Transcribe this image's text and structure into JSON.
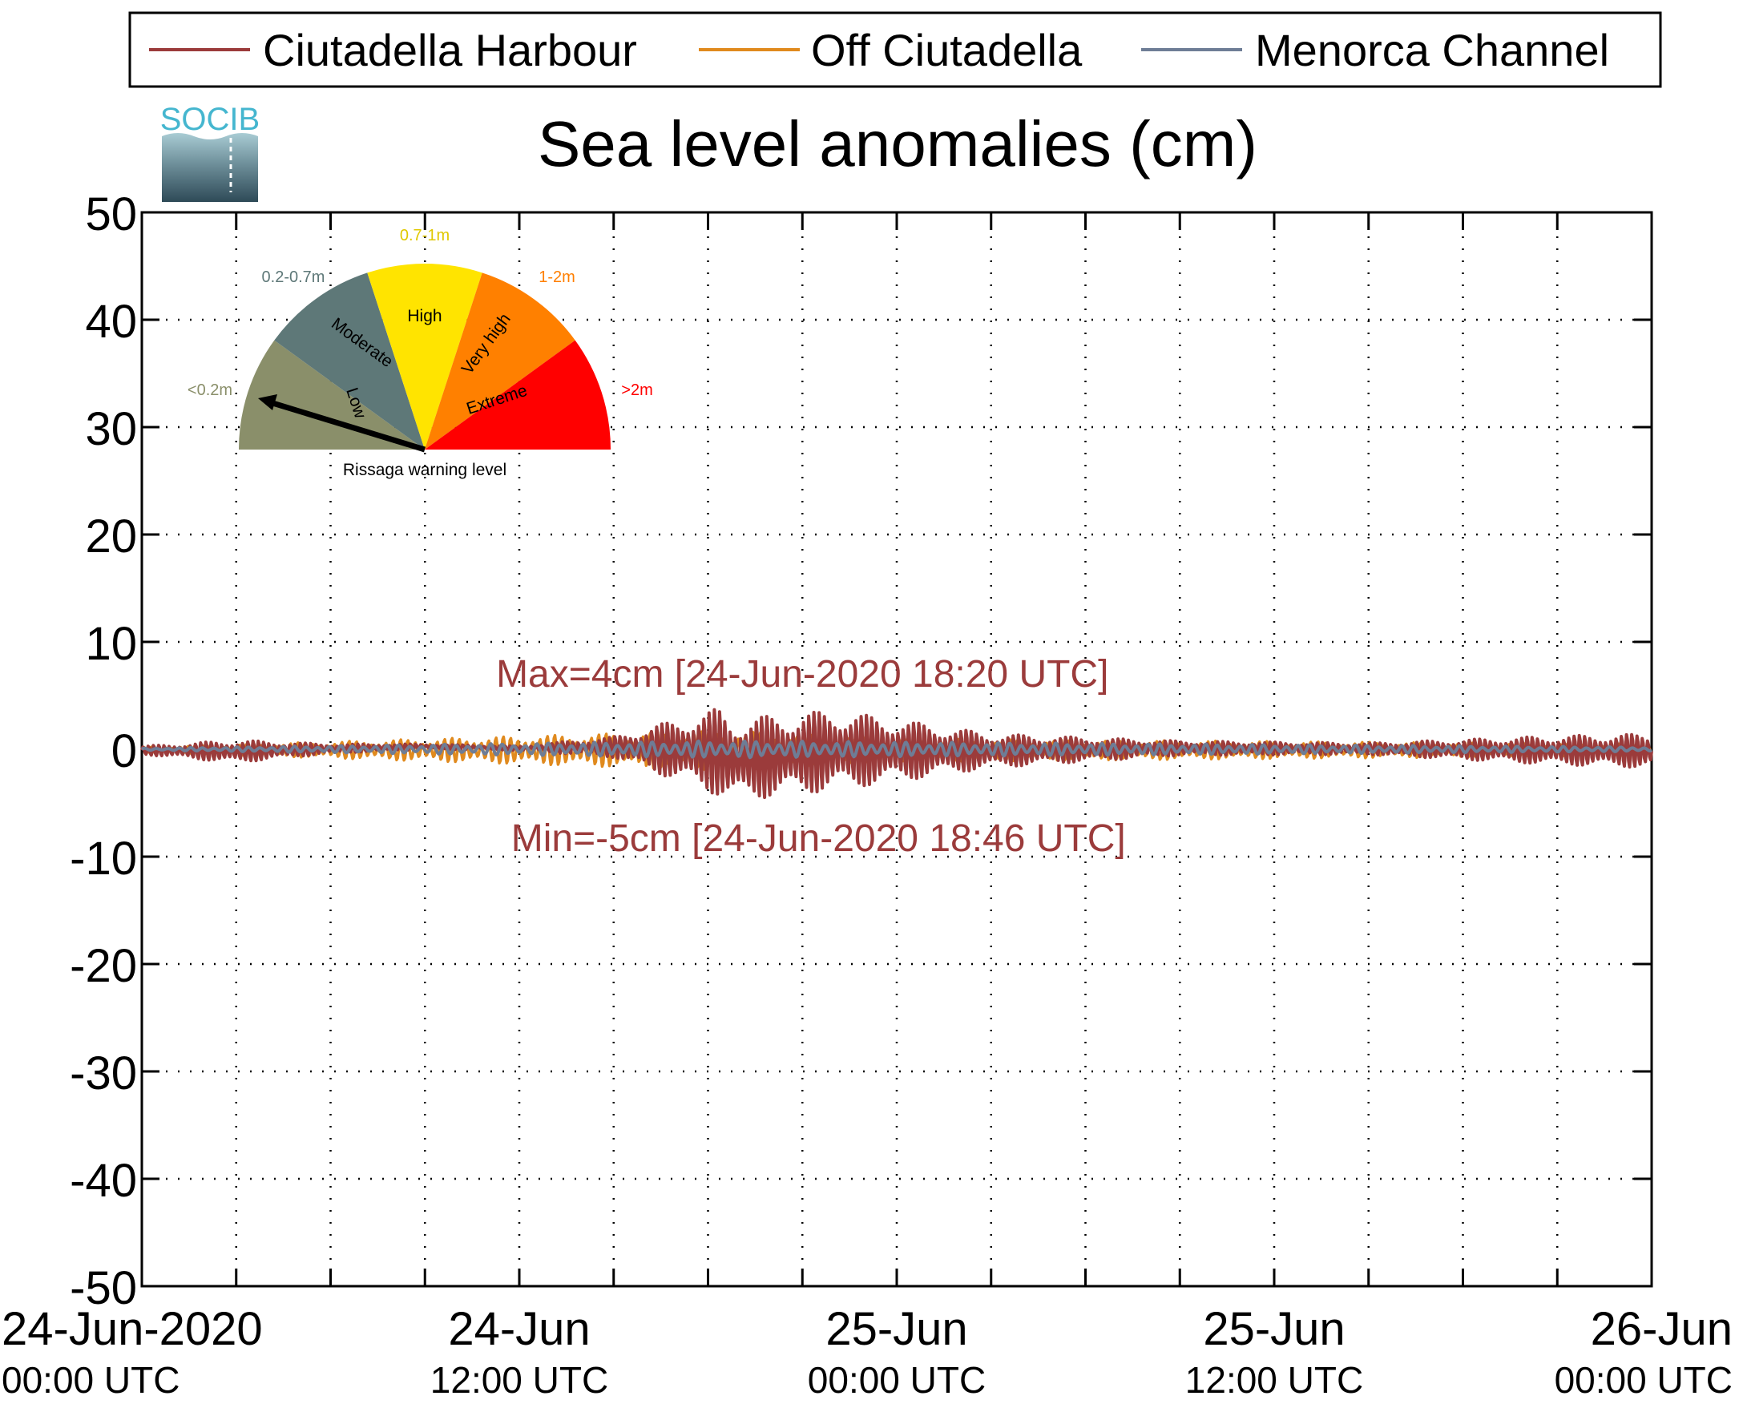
{
  "chart_data": {
    "type": "line",
    "title": "Sea level anomalies (cm)",
    "xlabel": "",
    "ylabel": "",
    "ylim": [
      -50,
      50
    ],
    "yticks": [
      50,
      40,
      30,
      20,
      10,
      0,
      -10,
      -20,
      -30,
      -40,
      -50
    ],
    "yticklabels": [
      "50",
      "40",
      "30",
      "20",
      "10",
      "0",
      "-10",
      "-20",
      "-30",
      "-40",
      "-50"
    ],
    "xlim": [
      "2020-06-24T00:00Z",
      "2020-06-26T00:00Z"
    ],
    "xtick_hours": [
      0,
      3,
      6,
      9,
      12,
      15,
      18,
      21,
      24,
      27,
      30,
      33,
      36,
      39,
      42,
      45,
      48
    ],
    "xticklabels": [
      {
        "line1": "24-Jun-2020",
        "line2": "00:00 UTC"
      },
      {
        "line1": "24-Jun",
        "line2": "12:00 UTC"
      },
      {
        "line1": "25-Jun",
        "line2": "00:00 UTC"
      },
      {
        "line1": "25-Jun",
        "line2": "12:00 UTC"
      },
      {
        "line1": "26-Jun",
        "line2": "00:00 UTC"
      }
    ],
    "grid": true,
    "legend_position": "top",
    "series": [
      {
        "name": "Ciutadella Harbour",
        "color": "#9b3b3b",
        "envelope": [
          {
            "x": "2020-06-24T00:00Z",
            "y_min": -0.5,
            "y_max": 0.3
          },
          {
            "x": "2020-06-24T03:00Z",
            "y_min": -1.3,
            "y_max": 0.9
          },
          {
            "x": "2020-06-24T06:00Z",
            "y_min": -0.4,
            "y_max": 0.5
          },
          {
            "x": "2020-06-24T09:00Z",
            "y_min": 0.0,
            "y_max": 0.5
          },
          {
            "x": "2020-06-24T12:00Z",
            "y_min": -0.1,
            "y_max": 0.3
          },
          {
            "x": "2020-06-24T15:00Z",
            "y_min": -0.8,
            "y_max": 1.2
          },
          {
            "x": "2020-06-24T18:20Z",
            "y_min": -4.5,
            "y_max": 4.0
          },
          {
            "x": "2020-06-24T18:46Z",
            "y_min": -5.0,
            "y_max": 3.0
          },
          {
            "x": "2020-06-24T22:00Z",
            "y_min": -4.0,
            "y_max": 3.8
          },
          {
            "x": "2020-06-25T03:00Z",
            "y_min": -1.8,
            "y_max": 1.5
          },
          {
            "x": "2020-06-25T09:00Z",
            "y_min": -0.6,
            "y_max": 0.8
          },
          {
            "x": "2020-06-25T15:00Z",
            "y_min": -0.5,
            "y_max": 0.6
          },
          {
            "x": "2020-06-25T21:00Z",
            "y_min": -1.5,
            "y_max": 1.3
          },
          {
            "x": "2020-06-26T00:00Z",
            "y_min": -1.8,
            "y_max": 1.5
          }
        ]
      },
      {
        "name": "Off Ciutadella",
        "color": "#e08a1e",
        "envelope": [
          {
            "x": "2020-06-24T00:00Z",
            "y_min": -0.3,
            "y_max": 0.2
          },
          {
            "x": "2020-06-24T18:30Z",
            "y_min": -2.0,
            "y_max": 1.8
          },
          {
            "x": "2020-06-25T00:00Z",
            "y_min": -1.2,
            "y_max": 1.0
          },
          {
            "x": "2020-06-26T00:00Z",
            "y_min": -0.6,
            "y_max": 0.5
          }
        ]
      },
      {
        "name": "Menorca Channel",
        "color": "#6e7d96",
        "envelope": [
          {
            "x": "2020-06-24T00:00Z",
            "y_min": -0.1,
            "y_max": 0.1
          },
          {
            "x": "2020-06-24T18:30Z",
            "y_min": -0.8,
            "y_max": 0.8
          },
          {
            "x": "2020-06-26T00:00Z",
            "y_min": -0.2,
            "y_max": 0.2
          }
        ]
      }
    ],
    "annotations": [
      {
        "text": "Max=4cm [24-Jun-2020 18:20 UTC]",
        "color": "#9b3b3b",
        "y": 7
      },
      {
        "text": "Min=-5cm [24-Jun-2020 18:46 UTC]",
        "color": "#9b3b3b",
        "y": -8.3
      }
    ]
  },
  "logo": {
    "text": "SOCIB"
  },
  "gauge": {
    "caption": "Rissaga warning level",
    "needle_level": "Low",
    "segments": [
      {
        "name": "Low",
        "range": "<0.2m",
        "color": "#8a8f6a",
        "range_color": "#8a8f6a"
      },
      {
        "name": "Moderate",
        "range": "0.2-0.7m",
        "color": "#5e7878",
        "range_color": "#5e7878"
      },
      {
        "name": "High",
        "range": "0.7-1m",
        "color": "#ffe400",
        "range_color": "#e0c800"
      },
      {
        "name": "Very high",
        "range": "1-2m",
        "color": "#ff8000",
        "range_color": "#ff7f00"
      },
      {
        "name": "Extreme",
        "range": ">2m",
        "color": "#ff0000",
        "range_color": "#ff0000"
      }
    ]
  }
}
